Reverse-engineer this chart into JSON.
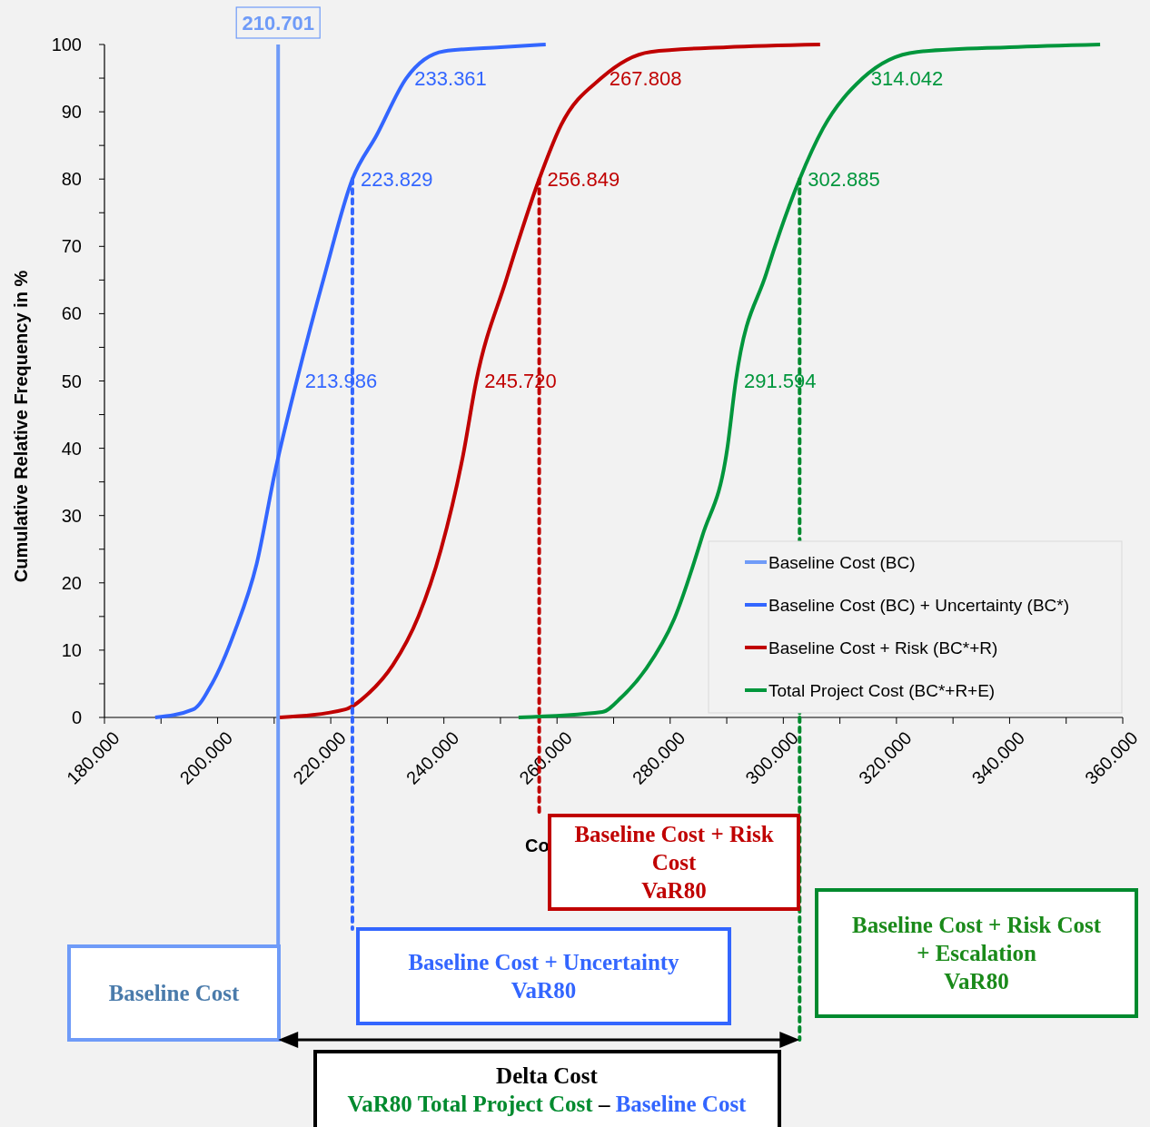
{
  "chart_data": {
    "type": "line",
    "ylabel": "Cumulative Relative Frequency in %",
    "xlabel": "Co",
    "xlim": [
      180000,
      360000
    ],
    "ylim": [
      0,
      100
    ],
    "xticks": [
      {
        "value": 180000,
        "label": "180.000"
      },
      {
        "value": 190000,
        "label": null
      },
      {
        "value": 200000,
        "label": "200.000"
      },
      {
        "value": 210000,
        "label": null
      },
      {
        "value": 220000,
        "label": "220.000"
      },
      {
        "value": 230000,
        "label": null
      },
      {
        "value": 240000,
        "label": "240.000"
      },
      {
        "value": 250000,
        "label": null
      },
      {
        "value": 260000,
        "label": "260.000"
      },
      {
        "value": 270000,
        "label": null
      },
      {
        "value": 280000,
        "label": "280.000"
      },
      {
        "value": 290000,
        "label": null
      },
      {
        "value": 300000,
        "label": "300.000"
      },
      {
        "value": 310000,
        "label": null
      },
      {
        "value": 320000,
        "label": "320.000"
      },
      {
        "value": 330000,
        "label": null
      },
      {
        "value": 340000,
        "label": "340.000"
      },
      {
        "value": 350000,
        "label": null
      },
      {
        "value": 360000,
        "label": "360.000"
      }
    ],
    "yticks": [
      0,
      {
        "value": 5,
        "label": null
      },
      10,
      {
        "value": 15,
        "label": null
      },
      20,
      {
        "value": 25,
        "label": null
      },
      30,
      {
        "value": 35,
        "label": null
      },
      40,
      {
        "value": 45,
        "label": null
      },
      50,
      {
        "value": 55,
        "label": null
      },
      60,
      {
        "value": 65,
        "label": null
      },
      70,
      {
        "value": 75,
        "label": null
      },
      80,
      {
        "value": 85,
        "label": null
      },
      90,
      {
        "value": 95,
        "label": null
      },
      100
    ],
    "legend": "bottom right",
    "grid": false,
    "series": [
      {
        "name": "Baseline Cost (BC)",
        "color": "#6f9bf8",
        "x": [
          210701,
          210701
        ],
        "values": [
          0,
          100
        ]
      },
      {
        "name": "Baseline Cost (BC) + Uncertainty (BC*)",
        "color": "#3366ff",
        "x": [
          188970,
          195700,
          199000,
          203000,
          206900,
          210200,
          213986,
          219000,
          223829,
          228100,
          233361,
          240000,
          250000,
          258000
        ],
        "values": [
          0,
          1.2,
          5,
          12.7,
          22.8,
          36.7,
          50,
          66,
          80,
          86.5,
          95,
          99,
          99.6,
          100
        ]
      },
      {
        "name": "Baseline Cost + Risk (BC*+R)",
        "color": "#c00000",
        "x": [
          211000,
          222600,
          226600,
          231000,
          235500,
          239500,
          243400,
          245720,
          251000,
          256849,
          260700,
          267808,
          276500,
          290000,
          306500
        ],
        "values": [
          0,
          1.2,
          3.5,
          7.8,
          15,
          25,
          39,
          50,
          65,
          80,
          88,
          95,
          98.9,
          99.6,
          100
        ]
      },
      {
        "name": "Total Project Cost (BC*+R+E)",
        "color": "#00963c",
        "x": [
          253200,
          268000,
          271400,
          275800,
          280700,
          285700,
          290100,
          291594,
          297000,
          302885,
          307000,
          314042,
          323600,
          340000,
          356000
        ],
        "values": [
          0,
          0.8,
          3,
          7.3,
          14.6,
          27,
          40,
          50,
          66,
          80,
          87.5,
          95,
          98.9,
          99.6,
          100
        ]
      },
      {
        "color": "#3366ff",
        "line_style": "dotted",
        "x": [
          223829,
          223829
        ],
        "values": [
          80,
          0
        ]
      },
      {
        "color": "#c00000",
        "line_style": "dotted",
        "x": [
          256849,
          256849
        ],
        "values": [
          80,
          0
        ]
      },
      {
        "color": "#008a2e",
        "line_style": "dotted",
        "x": [
          302885,
          302885
        ],
        "values": [
          80,
          0
        ]
      }
    ],
    "annotations": [
      {
        "text": "210.701",
        "x": 210701,
        "y": 100
      },
      {
        "text": "213.986",
        "x": 213986,
        "y": 50
      },
      {
        "text": "223.829",
        "x": 223829,
        "y": 80
      },
      {
        "text": "233.361",
        "x": 233361,
        "y": 95
      },
      {
        "text": "245.720",
        "x": 245720,
        "y": 50
      },
      {
        "text": "256.849",
        "x": 256849,
        "y": 80
      },
      {
        "text": "267.808",
        "x": 267808,
        "y": 95
      },
      {
        "text": "291.594",
        "x": 291594,
        "y": 50
      },
      {
        "text": "302.885",
        "x": 302885,
        "y": 80
      },
      {
        "text": "314.042",
        "x": 314042,
        "y": 95
      },
      "Baseline Cost",
      "Baseline Cost + Uncertainty\nVaR80",
      "Baseline Cost + Risk\nCost\nVaR80",
      "Baseline Cost + Risk Cost\n+ Escalation\nVaR80",
      "Delta Cost",
      "VaR80 Total Project Cost",
      "–",
      "Baseline Cost"
    ]
  }
}
